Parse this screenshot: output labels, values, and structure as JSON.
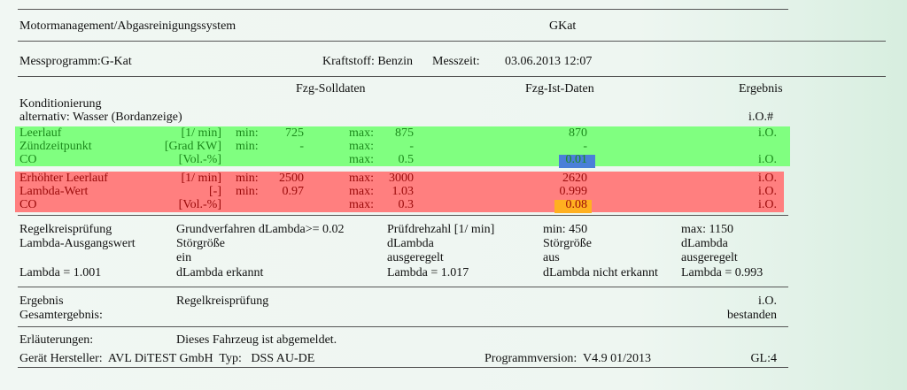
{
  "header": {
    "title": "Motormanagement/Abgasreinigungssystem",
    "code": "GKat"
  },
  "program": {
    "label": "Messprogramm:G-Kat",
    "fuel": "Kraftstoff: Benzin",
    "time_label": "Messzeit:",
    "time": "03.06.2013 12:07"
  },
  "columns": {
    "soll": "Fzg-Solldaten",
    "ist": "Fzg-Ist-Daten",
    "result": "Ergebnis"
  },
  "conditioning": {
    "label": "Konditionierung",
    "alt": "alternativ: Wasser (Bordanzeige)",
    "result": "i.O.#"
  },
  "colors": {
    "green_band": "#80ff80",
    "red_band": "#ff7f7f",
    "blue_mark": "#4a7fd8",
    "orange_mark": "#ffb020"
  },
  "rows": [
    {
      "name": "Leerlauf",
      "unit": "[1/ min]",
      "min_label": "min:",
      "min": "725",
      "max_label": "max:",
      "max": "875",
      "ist": "870",
      "result": "i.O."
    },
    {
      "name": "Zündzeitpunkt",
      "unit": "[Grad KW]",
      "min_label": "min:",
      "min": "-",
      "max_label": "max:",
      "max": "-",
      "ist": "-",
      "result": ""
    },
    {
      "name": "CO",
      "unit": "[Vol.-%]",
      "min_label": "",
      "min": "",
      "max_label": "max:",
      "max": "0.5",
      "ist": "0.01",
      "result": "i.O."
    },
    {
      "name": "Erhöhter Leerlauf",
      "unit": "[1/ min]",
      "min_label": "min:",
      "min": "2500",
      "max_label": "max:",
      "max": "3000",
      "ist": "2620",
      "result": "i.O."
    },
    {
      "name": "Lambda-Wert",
      "unit": "[-]",
      "min_label": "min:",
      "min": "0.97",
      "max_label": "max:",
      "max": "1.03",
      "ist": "0.999",
      "result": "i.O."
    },
    {
      "name": "CO",
      "unit": "[Vol.-%]",
      "min_label": "",
      "min": "",
      "max_label": "max:",
      "max": "0.3",
      "ist": "0.08",
      "result": "i.O."
    }
  ],
  "regel": {
    "c1": [
      "Regelkreisprüfung",
      "Lambda-Ausgangswert",
      "",
      "Lambda = 1.001"
    ],
    "c2": [
      "Grundverfahren dLambda>= 0.02",
      "Störgröße",
      "ein",
      "dLambda erkannt"
    ],
    "c3": [
      "Prüfdrehzahl [1/ min]",
      "dLambda",
      "ausgeregelt",
      "Lambda = 1.017"
    ],
    "c4": [
      "min: 450",
      "Störgröße",
      "aus",
      "dLambda nicht erkannt"
    ],
    "c5": [
      "max: 1150",
      "dLambda",
      "ausgeregelt",
      "Lambda = 0.993"
    ]
  },
  "result": {
    "label": "Ergebnis",
    "test": "Regelkreisprüfung",
    "value": "i.O.",
    "overall_label": "Gesamtergebnis:",
    "overall": "bestanden"
  },
  "notes": {
    "label": "Erläuterungen:",
    "text": "Dieses Fahrzeug ist abgemeldet."
  },
  "footer": {
    "maker": "Gerät Hersteller:  AVL DiTEST GmbH  Typ:   DSS AU-DE",
    "version": "Programmversion:  V4.9 01/2013",
    "gl": "GL:4"
  }
}
